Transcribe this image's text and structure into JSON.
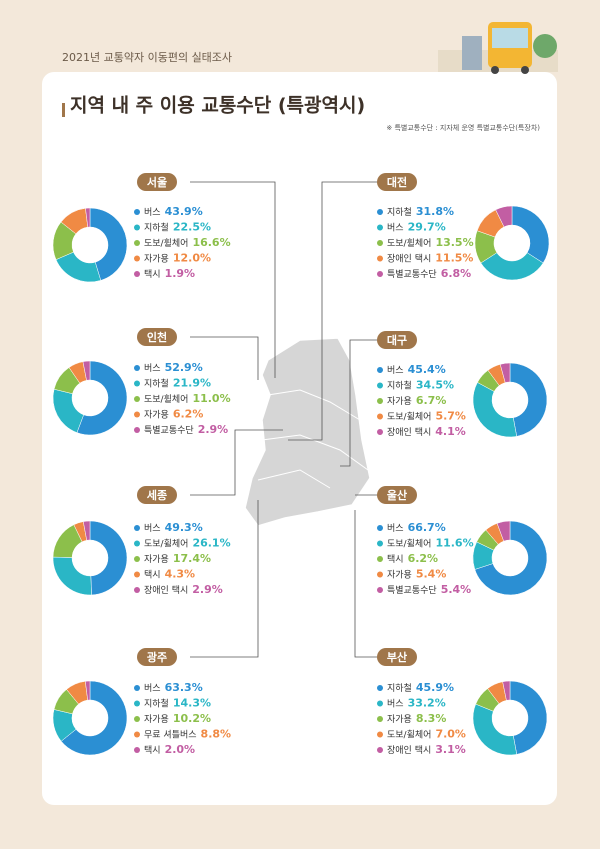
{
  "header": {
    "survey": "2021년 교통약자 이동편의 실태조사",
    "title": "지역 내 주 이용 교통수단 (특광역시)",
    "note": "※ 특별교통수단 : 지자체 운영 특별교통수단(특장차)"
  },
  "chart_data": [
    {
      "type": "pie",
      "title": "서울",
      "categories": [
        "버스",
        "지하철",
        "도보/휠체어",
        "자가용",
        "택시"
      ],
      "values": [
        43.9,
        22.5,
        16.6,
        12.0,
        1.9
      ],
      "value_labels": [
        "43.9%",
        "22.5%",
        "16.6%",
        "12.0%",
        "1.9%"
      ],
      "colors": [
        "#2b8fd3",
        "#2ab6c6",
        "#8cbf4b",
        "#f08a44",
        "#c25ea3"
      ]
    },
    {
      "type": "pie",
      "title": "인천",
      "categories": [
        "버스",
        "지하철",
        "도보/휠체어",
        "자가용",
        "특별교통수단"
      ],
      "values": [
        52.9,
        21.9,
        11.0,
        6.2,
        2.9
      ],
      "value_labels": [
        "52.9%",
        "21.9%",
        "11.0%",
        "6.2%",
        "2.9%"
      ],
      "colors": [
        "#2b8fd3",
        "#2ab6c6",
        "#8cbf4b",
        "#f08a44",
        "#c25ea3"
      ]
    },
    {
      "type": "pie",
      "title": "세종",
      "categories": [
        "버스",
        "도보/휠체어",
        "자가용",
        "택시",
        "장애인 택시"
      ],
      "values": [
        49.3,
        26.1,
        17.4,
        4.3,
        2.9
      ],
      "value_labels": [
        "49.3%",
        "26.1%",
        "17.4%",
        "4.3%",
        "2.9%"
      ],
      "colors": [
        "#2b8fd3",
        "#2ab6c6",
        "#8cbf4b",
        "#f08a44",
        "#c25ea3"
      ]
    },
    {
      "type": "pie",
      "title": "광주",
      "categories": [
        "버스",
        "지하철",
        "자가용",
        "무료 셔틀버스",
        "택시"
      ],
      "values": [
        63.3,
        14.3,
        10.2,
        8.8,
        2.0
      ],
      "value_labels": [
        "63.3%",
        "14.3%",
        "10.2%",
        "8.8%",
        "2.0%"
      ],
      "colors": [
        "#2b8fd3",
        "#2ab6c6",
        "#8cbf4b",
        "#f08a44",
        "#c25ea3"
      ]
    },
    {
      "type": "pie",
      "title": "대전",
      "categories": [
        "지하철",
        "버스",
        "도보/휠체어",
        "장애인 택시",
        "특별교통수단"
      ],
      "values": [
        31.8,
        29.7,
        13.5,
        11.5,
        6.8
      ],
      "value_labels": [
        "31.8%",
        "29.7%",
        "13.5%",
        "11.5%",
        "6.8%"
      ],
      "colors": [
        "#2b8fd3",
        "#2ab6c6",
        "#8cbf4b",
        "#f08a44",
        "#c25ea3"
      ]
    },
    {
      "type": "pie",
      "title": "대구",
      "categories": [
        "버스",
        "지하철",
        "자가용",
        "도보/휠체어",
        "장애인 택시"
      ],
      "values": [
        45.4,
        34.5,
        6.7,
        5.7,
        4.1
      ],
      "value_labels": [
        "45.4%",
        "34.5%",
        "6.7%",
        "5.7%",
        "4.1%"
      ],
      "colors": [
        "#2b8fd3",
        "#2ab6c6",
        "#8cbf4b",
        "#f08a44",
        "#c25ea3"
      ]
    },
    {
      "type": "pie",
      "title": "울산",
      "categories": [
        "버스",
        "도보/휠체어",
        "택시",
        "자가용",
        "특별교통수단"
      ],
      "values": [
        66.7,
        11.6,
        6.2,
        5.4,
        5.4
      ],
      "value_labels": [
        "66.7%",
        "11.6%",
        "6.2%",
        "5.4%",
        "5.4%"
      ],
      "colors": [
        "#2b8fd3",
        "#2ab6c6",
        "#8cbf4b",
        "#f08a44",
        "#c25ea3"
      ]
    },
    {
      "type": "pie",
      "title": "부산",
      "categories": [
        "지하철",
        "버스",
        "자가용",
        "도보/휠체어",
        "장애인 택시"
      ],
      "values": [
        45.9,
        33.2,
        8.3,
        7.0,
        3.1
      ],
      "value_labels": [
        "45.9%",
        "33.2%",
        "8.3%",
        "7.0%",
        "3.1%"
      ],
      "colors": [
        "#2b8fd3",
        "#2ab6c6",
        "#8cbf4b",
        "#f08a44",
        "#c25ea3"
      ]
    }
  ]
}
